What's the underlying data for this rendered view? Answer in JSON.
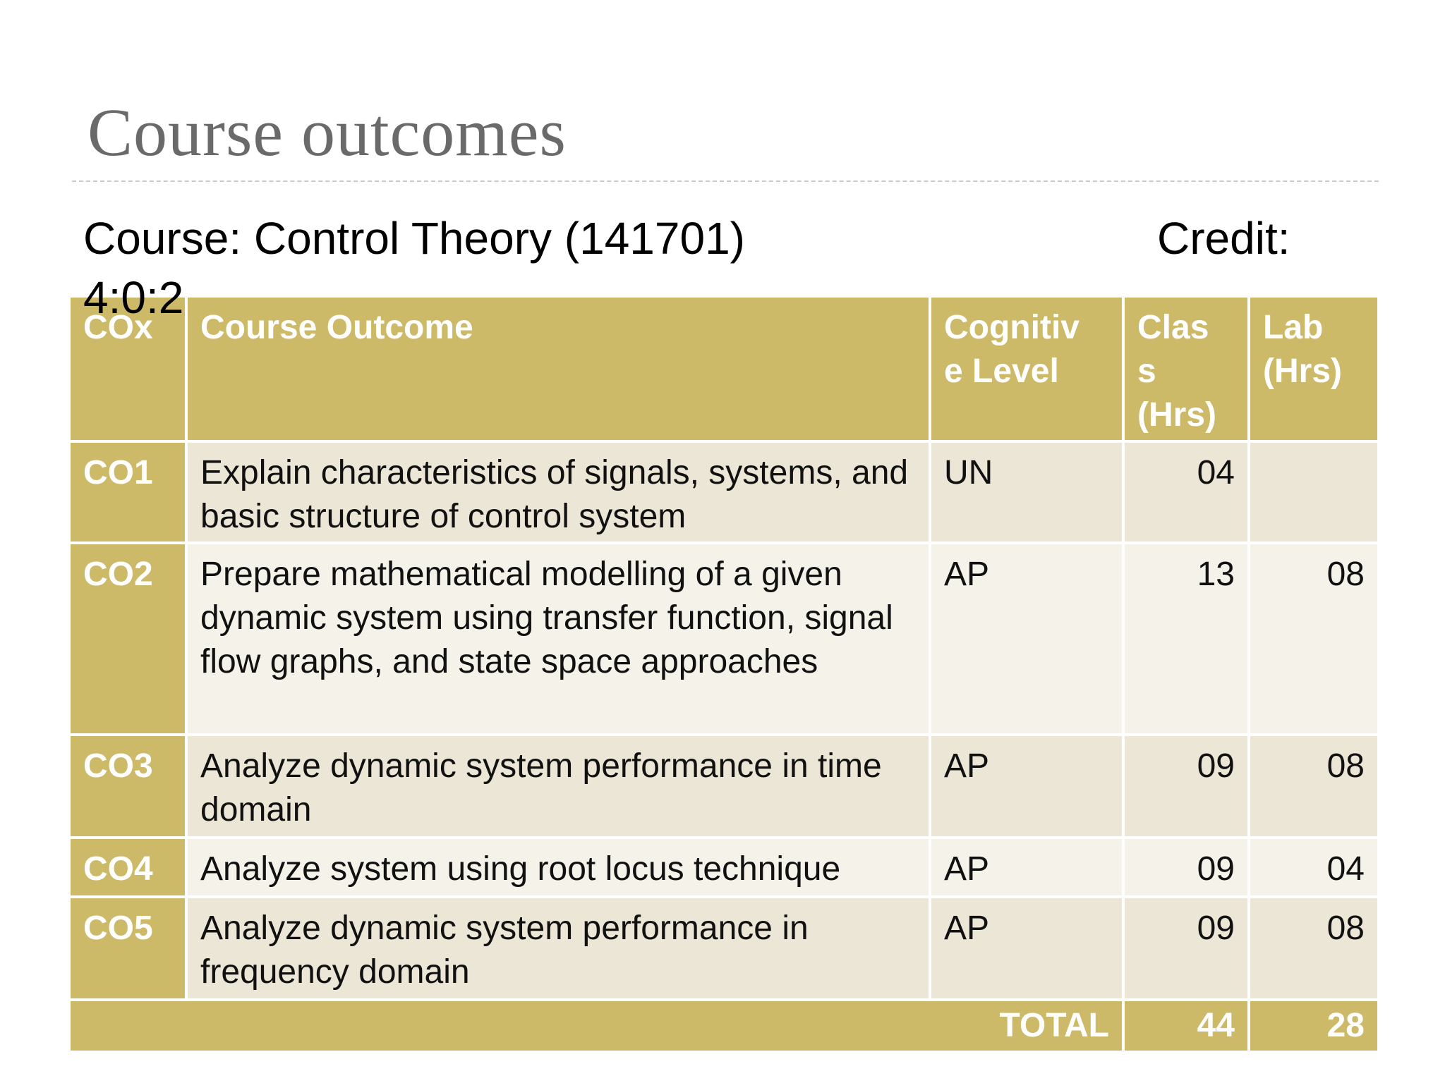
{
  "slide": {
    "title": "Course outcomes",
    "course_line": "Course: Control Theory (141701)",
    "credit_label": "Credit:",
    "credit_value": "4:0:2"
  },
  "table": {
    "headers": {
      "cox": "COx",
      "outcome": "Course Outcome",
      "cognitive": "Cognitiv\ne Level",
      "class": "Clas\ns\n(Hrs)",
      "lab": "Lab\n(Hrs)"
    },
    "rows": [
      {
        "cox": "CO1",
        "outcome": "Explain characteristics of signals,  systems, and basic structure of control system",
        "level": "UN",
        "class_hrs": "04",
        "lab_hrs": ""
      },
      {
        "cox": "CO2",
        "outcome": "Prepare mathematical modelling of a given dynamic system using transfer function, signal flow graphs, and state space approaches",
        "level": "AP",
        "class_hrs": "13",
        "lab_hrs": "08"
      },
      {
        "cox": "CO3",
        "outcome": "Analyze dynamic system performance in time domain",
        "level": "AP",
        "class_hrs": "09",
        "lab_hrs": "08"
      },
      {
        "cox": "CO4",
        "outcome": "Analyze system using root locus technique",
        "level": "AP",
        "class_hrs": "09",
        "lab_hrs": "04"
      },
      {
        "cox": "CO5",
        "outcome": "Analyze dynamic system performance in frequency domain",
        "level": "AP",
        "class_hrs": "09",
        "lab_hrs": "08"
      }
    ],
    "total": {
      "label": "TOTAL",
      "class_hrs": "44",
      "lab_hrs": "28"
    }
  },
  "colors": {
    "header_gold": "#ccba69",
    "row_band_dark": "#ebe6d6",
    "row_band_light": "#f5f2ea",
    "title_gray": "#6a6a6a"
  }
}
